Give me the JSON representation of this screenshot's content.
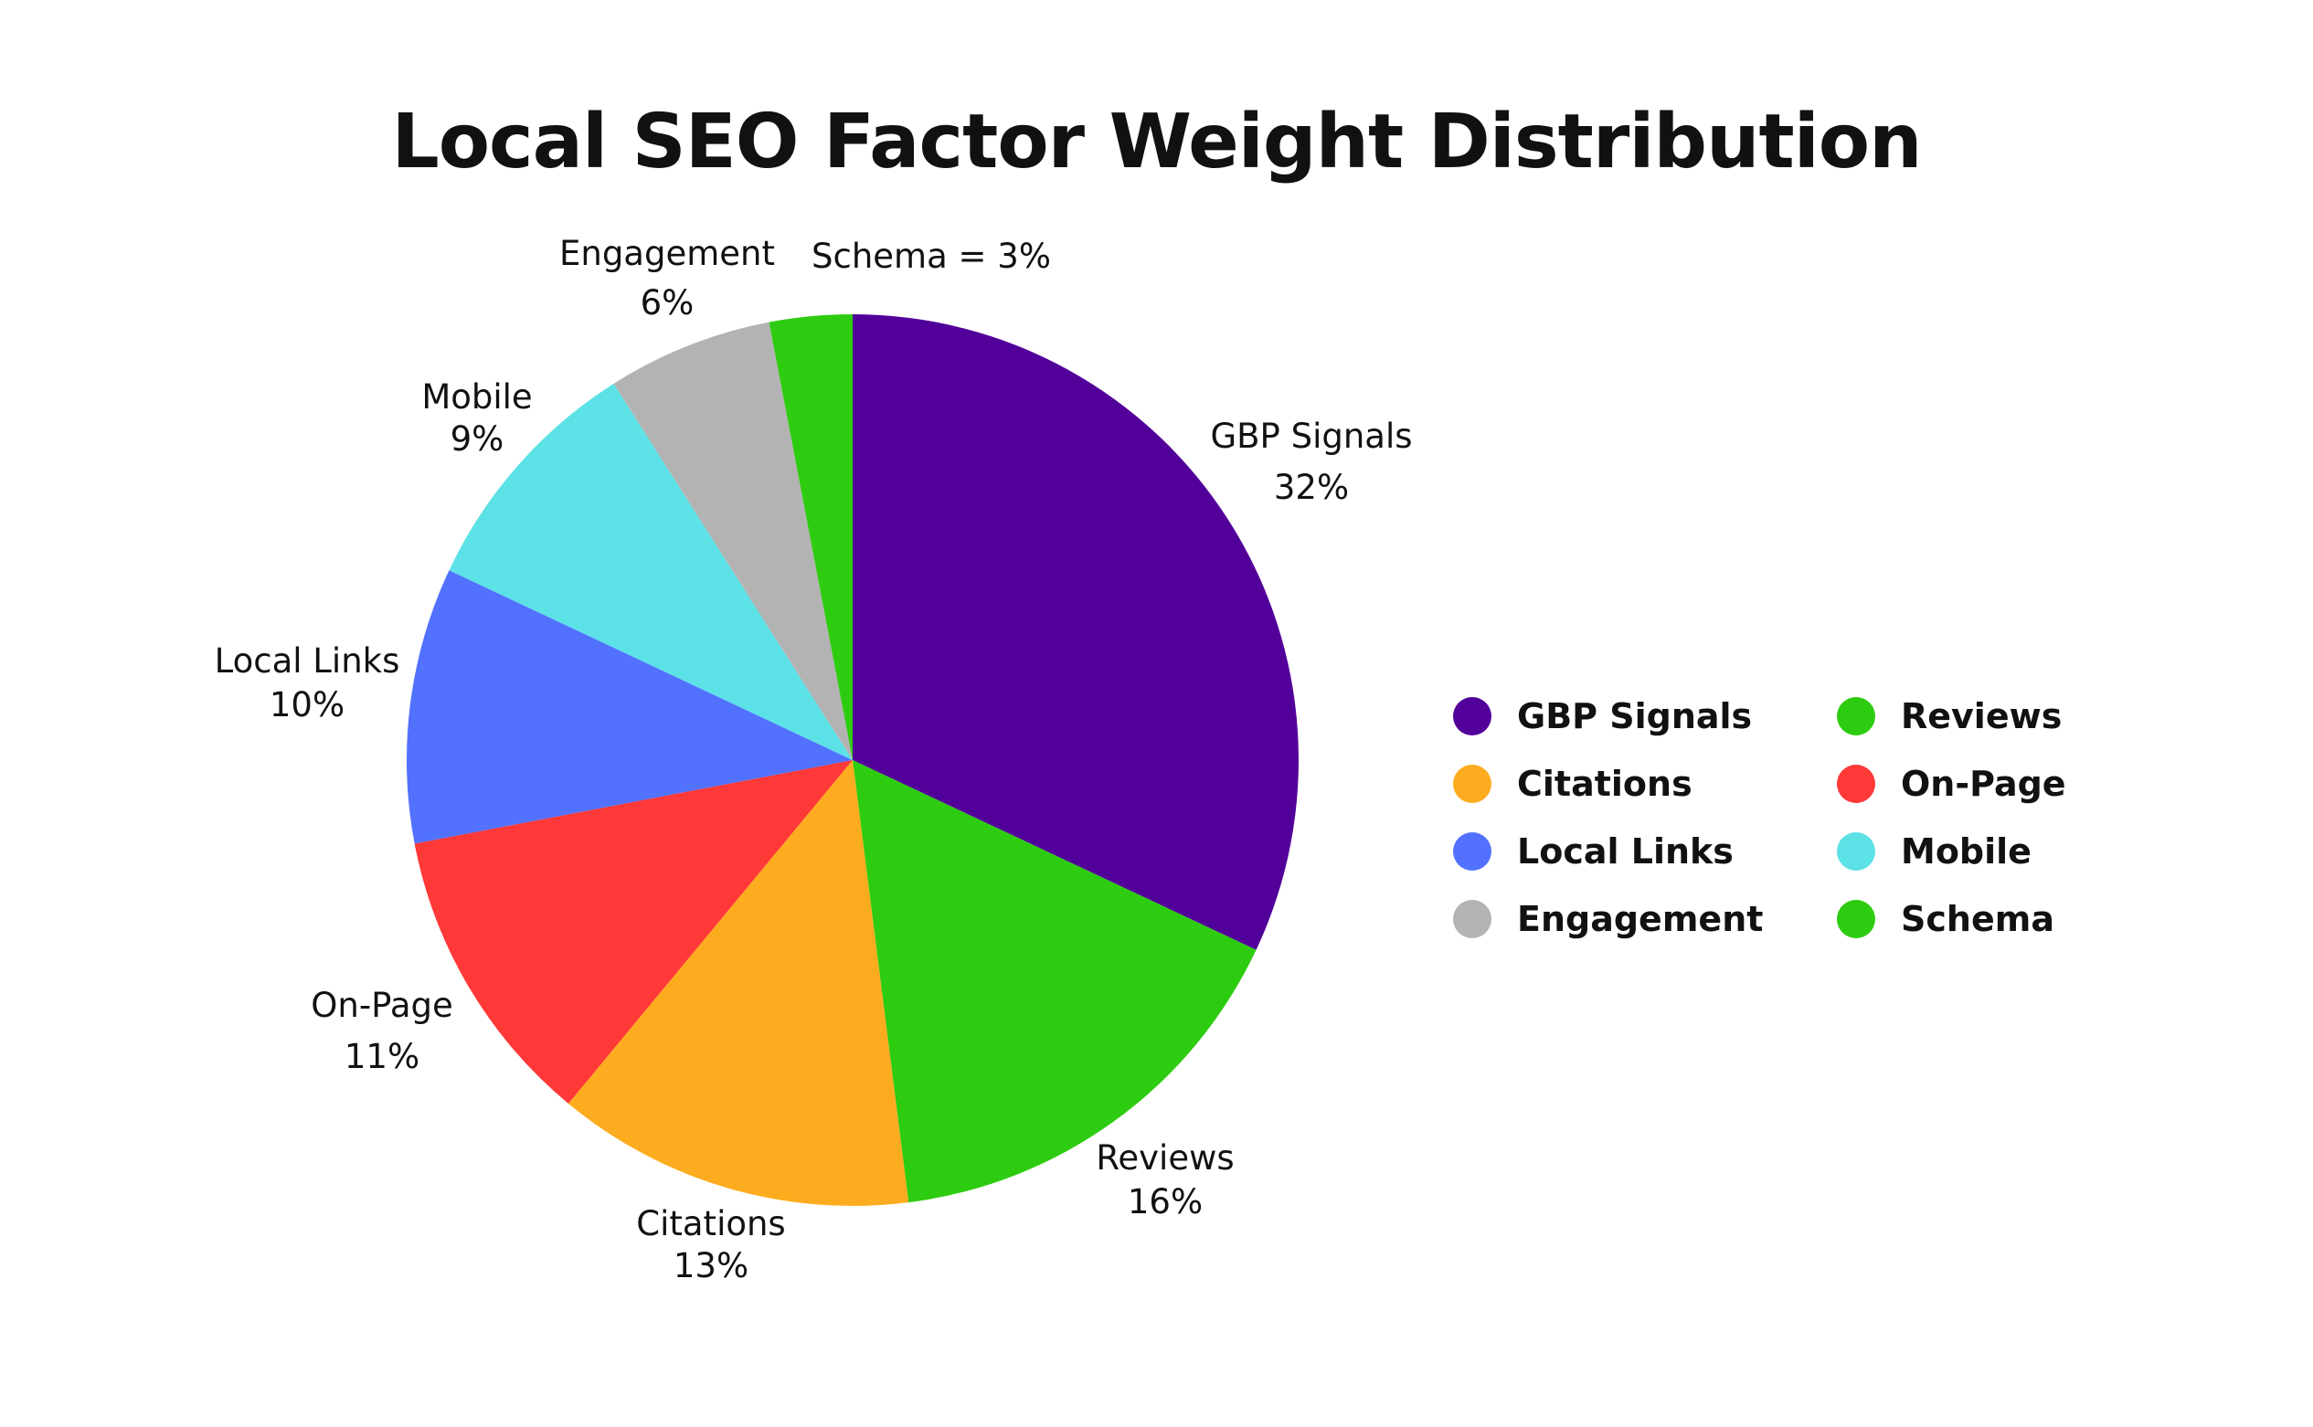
{
  "chart_data": {
    "type": "pie",
    "title": "Local SEO Factor Weight Distribution",
    "slices": [
      {
        "name": "GBP Signals",
        "value": 32,
        "label": "32%",
        "color": "#52009A"
      },
      {
        "name": "Reviews",
        "value": 16,
        "label": "16%",
        "color": "#2ECC10"
      },
      {
        "name": "Citations",
        "value": 13,
        "label": "13%",
        "color": "#FEAC1F"
      },
      {
        "name": "On-Page",
        "value": 11,
        "label": "11%",
        "color": "#FF3838"
      },
      {
        "name": "Local Links",
        "value": 10,
        "label": "10%",
        "color": "#5271FF"
      },
      {
        "name": "Mobile",
        "value": 9,
        "label": "9%",
        "color": "#5CE1E6"
      },
      {
        "name": "Engagement",
        "value": 6,
        "label": "6%",
        "color": "#B3B3B3"
      },
      {
        "name": "Schema",
        "value": 3,
        "label": "Schema = 3%",
        "color": "#2ECC10"
      }
    ],
    "start_angle": "12 o'clock",
    "direction": "clockwise",
    "legend_position": "right",
    "legend": [
      {
        "label": "GBP Signals",
        "color": "#52009A"
      },
      {
        "label": "Reviews",
        "color": "#2ECC10"
      },
      {
        "label": "Citations",
        "color": "#FEAC1F"
      },
      {
        "label": "On-Page",
        "color": "#FF3838"
      },
      {
        "label": "Local Links",
        "color": "#5271FF"
      },
      {
        "label": "Mobile",
        "color": "#5CE1E6"
      },
      {
        "label": "Engagement",
        "color": "#B3B3B3"
      },
      {
        "label": "Schema",
        "color": "#2ECC10"
      }
    ]
  }
}
